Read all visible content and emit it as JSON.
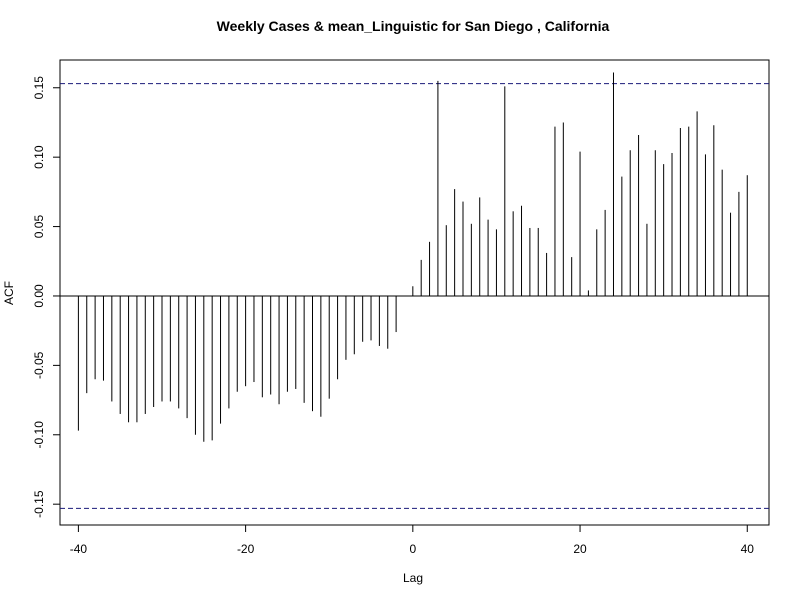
{
  "chart_data": {
    "type": "bar",
    "title": "Weekly Cases & mean_Linguistic for San Diego , California",
    "xlabel": "Lag",
    "ylabel": "ACF",
    "xlim": [
      -40,
      40
    ],
    "ylim": [
      -0.165,
      0.17
    ],
    "x_ticks": [
      -40,
      -20,
      0,
      20,
      40
    ],
    "x_tick_labels": [
      "-40",
      "-20",
      "0",
      "20",
      "40"
    ],
    "y_ticks": [
      -0.15,
      -0.1,
      -0.05,
      0.0,
      0.05,
      0.1,
      0.15
    ],
    "y_tick_labels": [
      "-0.15",
      "-0.10",
      "-0.05",
      "0.00",
      "0.05",
      "0.10",
      "0.15"
    ],
    "confidence_bound": 0.153,
    "bound_color": "#1a1a7a",
    "bar_color": "#000000",
    "series": [
      {
        "lags": [
          -40,
          -39,
          -38,
          -37,
          -36,
          -35,
          -34,
          -33,
          -32,
          -31,
          -30,
          -29,
          -28,
          -27,
          -26,
          -25,
          -24,
          -23,
          -22,
          -21,
          -20,
          -19,
          -18,
          -17,
          -16,
          -15,
          -14,
          -13,
          -12,
          -11,
          -10,
          -9,
          -8,
          -7,
          -6,
          -5,
          -4,
          -3,
          -2,
          -1,
          0,
          1,
          2,
          3,
          4,
          5,
          6,
          7,
          8,
          9,
          10,
          11,
          12,
          13,
          14,
          15,
          16,
          17,
          18,
          19,
          20,
          21,
          22,
          23,
          24,
          25,
          26,
          27,
          28,
          29,
          30,
          31,
          32,
          33,
          34,
          35,
          36,
          37,
          38,
          39,
          40
        ],
        "values": [
          -0.097,
          -0.07,
          -0.06,
          -0.061,
          -0.076,
          -0.085,
          -0.091,
          -0.091,
          -0.085,
          -0.08,
          -0.076,
          -0.076,
          -0.081,
          -0.088,
          -0.1,
          -0.105,
          -0.104,
          -0.092,
          -0.081,
          -0.069,
          -0.065,
          -0.062,
          -0.073,
          -0.071,
          -0.078,
          -0.069,
          -0.067,
          -0.077,
          -0.083,
          -0.087,
          -0.074,
          -0.06,
          -0.046,
          -0.042,
          -0.033,
          -0.032,
          -0.036,
          -0.038,
          -0.026,
          0.0,
          0.007,
          0.026,
          0.039,
          0.155,
          0.051,
          0.077,
          0.068,
          0.052,
          0.071,
          0.055,
          0.048,
          0.151,
          0.061,
          0.065,
          0.049,
          0.049,
          0.031,
          0.122,
          0.125,
          0.028,
          0.104,
          0.004,
          0.048,
          0.062,
          0.161,
          0.086,
          0.105,
          0.116,
          0.052,
          0.105,
          0.095,
          0.103,
          0.121,
          0.122,
          0.133,
          0.102,
          0.123,
          0.091,
          0.06,
          0.075,
          0.087
        ]
      }
    ],
    "grid": false,
    "legend": "none"
  }
}
